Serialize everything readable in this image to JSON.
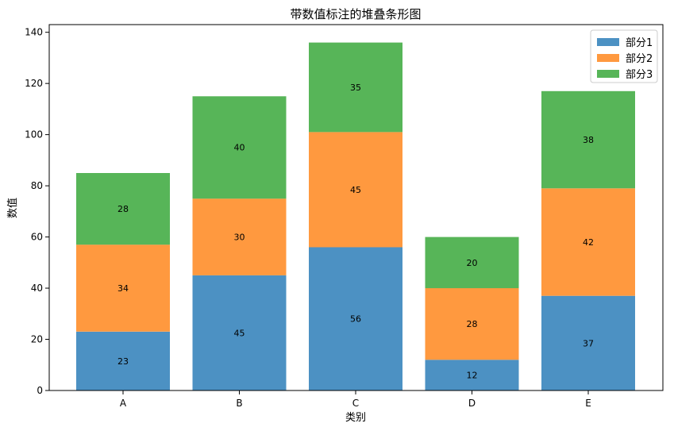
{
  "chart_data": {
    "type": "bar",
    "stacked": true,
    "title": "带数值标注的堆叠条形图",
    "xlabel": "类别",
    "ylabel": "数值",
    "categories": [
      "A",
      "B",
      "C",
      "D",
      "E"
    ],
    "ylim": [
      0,
      143
    ],
    "yticks": [
      0,
      20,
      40,
      60,
      80,
      100,
      120,
      140
    ],
    "legend_position": "top-right",
    "grid": false,
    "series": [
      {
        "name": "部分1",
        "color": "#4c91c3",
        "values": [
          23,
          45,
          56,
          12,
          37
        ]
      },
      {
        "name": "部分2",
        "color": "#ff993f",
        "values": [
          34,
          30,
          45,
          28,
          42
        ]
      },
      {
        "name": "部分3",
        "color": "#57b558",
        "values": [
          28,
          40,
          35,
          20,
          38
        ]
      }
    ]
  }
}
